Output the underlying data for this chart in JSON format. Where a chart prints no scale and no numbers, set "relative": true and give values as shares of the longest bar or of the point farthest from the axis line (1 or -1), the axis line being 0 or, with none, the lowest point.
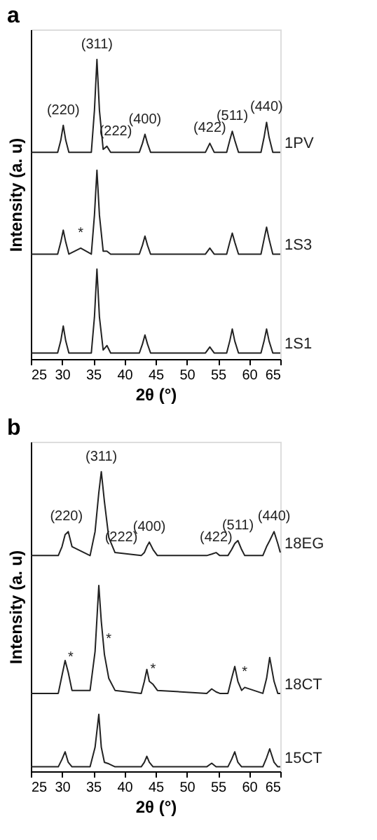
{
  "chart_data": [
    {
      "type": "line",
      "title": "a",
      "xlabel": "2θ (°)",
      "ylabel": "Intensity (a. u)",
      "relative": true,
      "xlim": [
        25,
        65
      ],
      "xticks": [
        25,
        30,
        35,
        40,
        45,
        50,
        55,
        60,
        65
      ],
      "grid": false,
      "legend": false,
      "x": [
        25,
        29.3,
        29.8,
        30.2,
        30.6,
        31.1,
        33,
        34.7,
        35.2,
        35.6,
        36.0,
        36.6,
        37.2,
        37.8,
        42.4,
        42.9,
        43.3,
        43.7,
        44.2,
        53,
        53.7,
        54.4,
        56.4,
        56.9,
        57.3,
        57.7,
        58.3,
        61.9,
        62.4,
        62.8,
        63.2,
        63.8,
        65
      ],
      "series": [
        {
          "name": "1PV",
          "color": "#222222",
          "values": [
            0.69,
            0.69,
            0.73,
            0.78,
            0.73,
            0.69,
            0.69,
            0.69,
            0.83,
            1,
            0.83,
            0.7,
            0.71,
            0.69,
            0.69,
            0.72,
            0.75,
            0.72,
            0.69,
            0.69,
            0.72,
            0.69,
            0.69,
            0.73,
            0.76,
            0.73,
            0.69,
            0.69,
            0.74,
            0.79,
            0.74,
            0.69,
            0.69
          ]
        },
        {
          "name": "1S3",
          "color": "#222222",
          "values": [
            0.35,
            0.35,
            0.39,
            0.43,
            0.39,
            0.35,
            0.37,
            0.35,
            0.48,
            0.63,
            0.48,
            0.36,
            0.36,
            0.35,
            0.35,
            0.38,
            0.41,
            0.38,
            0.35,
            0.35,
            0.37,
            0.35,
            0.35,
            0.39,
            0.42,
            0.39,
            0.35,
            0.35,
            0.4,
            0.44,
            0.4,
            0.35,
            0.35
          ]
        },
        {
          "name": "1S1",
          "color": "#222222",
          "values": [
            0.02,
            0.02,
            0.06,
            0.11,
            0.06,
            0.02,
            0.02,
            0.02,
            0.14,
            0.3,
            0.14,
            0.03,
            0.045,
            0.02,
            0.02,
            0.05,
            0.08,
            0.05,
            0.02,
            0.02,
            0.04,
            0.02,
            0.02,
            0.06,
            0.1,
            0.06,
            0.02,
            0.02,
            0.06,
            0.1,
            0.06,
            0.02,
            0.02
          ]
        }
      ],
      "annotations": [
        {
          "text": "(220)",
          "x": 30.2,
          "y": 0.78
        },
        {
          "text": "(311)",
          "x": 35.6,
          "y": 1
        },
        {
          "text": "(222)",
          "x": 38.6,
          "y": 0.71
        },
        {
          "text": "(400)",
          "x": 43.3,
          "y": 0.75
        },
        {
          "text": "(422)",
          "x": 53.7,
          "y": 0.72
        },
        {
          "text": "(511)",
          "x": 57.3,
          "y": 0.76
        },
        {
          "text": "(440)",
          "x": 62.8,
          "y": 0.79
        },
        {
          "text": "*",
          "x": 33,
          "y": 0.37
        }
      ]
    },
    {
      "type": "line",
      "title": "b",
      "xlabel": "2θ (°)",
      "ylabel": "Intensity (a. u)",
      "relative": true,
      "xlim": [
        25,
        65
      ],
      "xticks": [
        25,
        30,
        35,
        40,
        45,
        50,
        55,
        60,
        65
      ],
      "grid": false,
      "legend": false,
      "x": [
        25,
        29.4,
        30.0,
        30.5,
        31.0,
        31.6,
        34.5,
        35.3,
        35.9,
        36.3,
        36.8,
        37.5,
        38.5,
        42.7,
        43.2,
        43.6,
        44.0,
        44.6,
        45.3,
        53.2,
        54.0,
        54.7,
        55.3,
        56.6,
        57.2,
        57.7,
        58.2,
        58.8,
        59.3,
        62.2,
        62.8,
        63.3,
        64.0,
        64.6,
        65
      ],
      "series": [
        {
          "name": "18EG",
          "color": "#222222",
          "values": [
            0.72,
            0.72,
            0.75,
            0.79,
            0.8,
            0.75,
            0.72,
            0.8,
            0.93,
            1,
            0.9,
            0.78,
            0.73,
            0.72,
            0.73,
            0.75,
            0.765,
            0.74,
            0.72,
            0.72,
            0.725,
            0.73,
            0.72,
            0.72,
            0.74,
            0.76,
            0.77,
            0.74,
            0.72,
            0.72,
            0.75,
            0.77,
            0.8,
            0.76,
            0.73
          ]
        },
        {
          "name": "18CT",
          "color": "#222222",
          "values": [
            0.26,
            0.26,
            0.32,
            0.37,
            0.33,
            0.27,
            0.27,
            0.4,
            0.62,
            0.5,
            0.39,
            0.31,
            0.27,
            0.26,
            0.3,
            0.34,
            0.3,
            0.29,
            0.27,
            0.26,
            0.275,
            0.265,
            0.26,
            0.26,
            0.31,
            0.35,
            0.3,
            0.27,
            0.28,
            0.26,
            0.31,
            0.38,
            0.3,
            0.26,
            0.26
          ]
        },
        {
          "name": "15CT",
          "color": "#222222",
          "values": [
            0.015,
            0.015,
            0.04,
            0.065,
            0.03,
            0.015,
            0.015,
            0.08,
            0.19,
            0.08,
            0.03,
            0.025,
            0.015,
            0.015,
            0.03,
            0.05,
            0.03,
            0.015,
            0.015,
            0.015,
            0.027,
            0.015,
            0.015,
            0.015,
            0.04,
            0.065,
            0.03,
            0.015,
            0.015,
            0.015,
            0.045,
            0.075,
            0.03,
            0.015,
            0.015
          ]
        }
      ],
      "annotations": [
        {
          "text": "(220)",
          "x": 30.7,
          "y": 0.8
        },
        {
          "text": "(311)",
          "x": 36.3,
          "y": 1
        },
        {
          "text": "(222)",
          "x": 39.5,
          "y": 0.73
        },
        {
          "text": "(400)",
          "x": 44.0,
          "y": 0.765
        },
        {
          "text": "(422)",
          "x": 54.7,
          "y": 0.73
        },
        {
          "text": "(511)",
          "x": 58.2,
          "y": 0.77
        },
        {
          "text": "(440)",
          "x": 64.0,
          "y": 0.8
        },
        {
          "text": "*",
          "x": 31.4,
          "y": 0.33
        },
        {
          "text": "*",
          "x": 37.5,
          "y": 0.39
        },
        {
          "text": "*",
          "x": 44.6,
          "y": 0.29
        },
        {
          "text": "*",
          "x": 59.3,
          "y": 0.28
        }
      ]
    }
  ]
}
